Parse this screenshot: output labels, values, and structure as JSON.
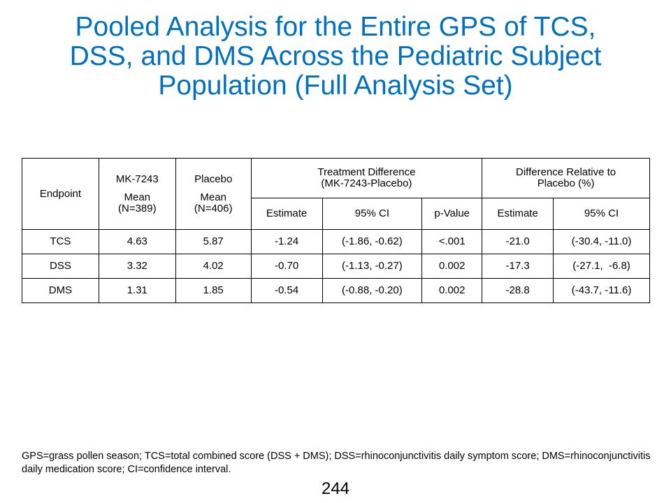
{
  "title": {
    "line1": "Pooled Analysis for the Entire GPS of TCS,",
    "line2": "DSS, and DMS Across the Pediatric Subject",
    "line3": "Population (Full Analysis Set)"
  },
  "table": {
    "header": {
      "endpoint": "Endpoint",
      "mk_top": "MK-7243",
      "mk_bottom": "Mean\n(N=389)",
      "placebo_top": "Placebo",
      "placebo_bottom": "Mean\n(N=406)",
      "treatment_group": "Treatment Difference\n(MK-7243-Placebo)",
      "relative_group": "Difference Relative to\nPlacebo (%)",
      "estimate": "Estimate",
      "ci": "95% CI",
      "pvalue": "p-Value",
      "rel_estimate": "Estimate",
      "rel_ci": "95% CI"
    },
    "rows": [
      [
        "TCS",
        "4.63",
        "5.87",
        "-1.24",
        "(-1.86, -0.62)",
        "<.001",
        "-21.0",
        "(-30.4, -11.0)"
      ],
      [
        "DSS",
        "3.32",
        "4.02",
        "-0.70",
        "(-1.13, -0.27)",
        "0.002",
        "-17.3",
        "(-27.1,  -6.8)"
      ],
      [
        "DMS",
        "1.31",
        "1.85",
        "-0.54",
        "(-0.88, -0.20)",
        "0.002",
        "-28.8",
        "(-43.7, -11.6)"
      ]
    ]
  },
  "footnote": "GPS=grass pollen season; TCS=total combined score (DSS + DMS); DSS=rhinoconjunctivitis daily symptom score; DMS=rhinoconjunctivitis daily medication score; CI=confidence interval.",
  "page_number": "244",
  "colors": {
    "title": "#0070C0",
    "header_rule": "#2E62A6"
  }
}
